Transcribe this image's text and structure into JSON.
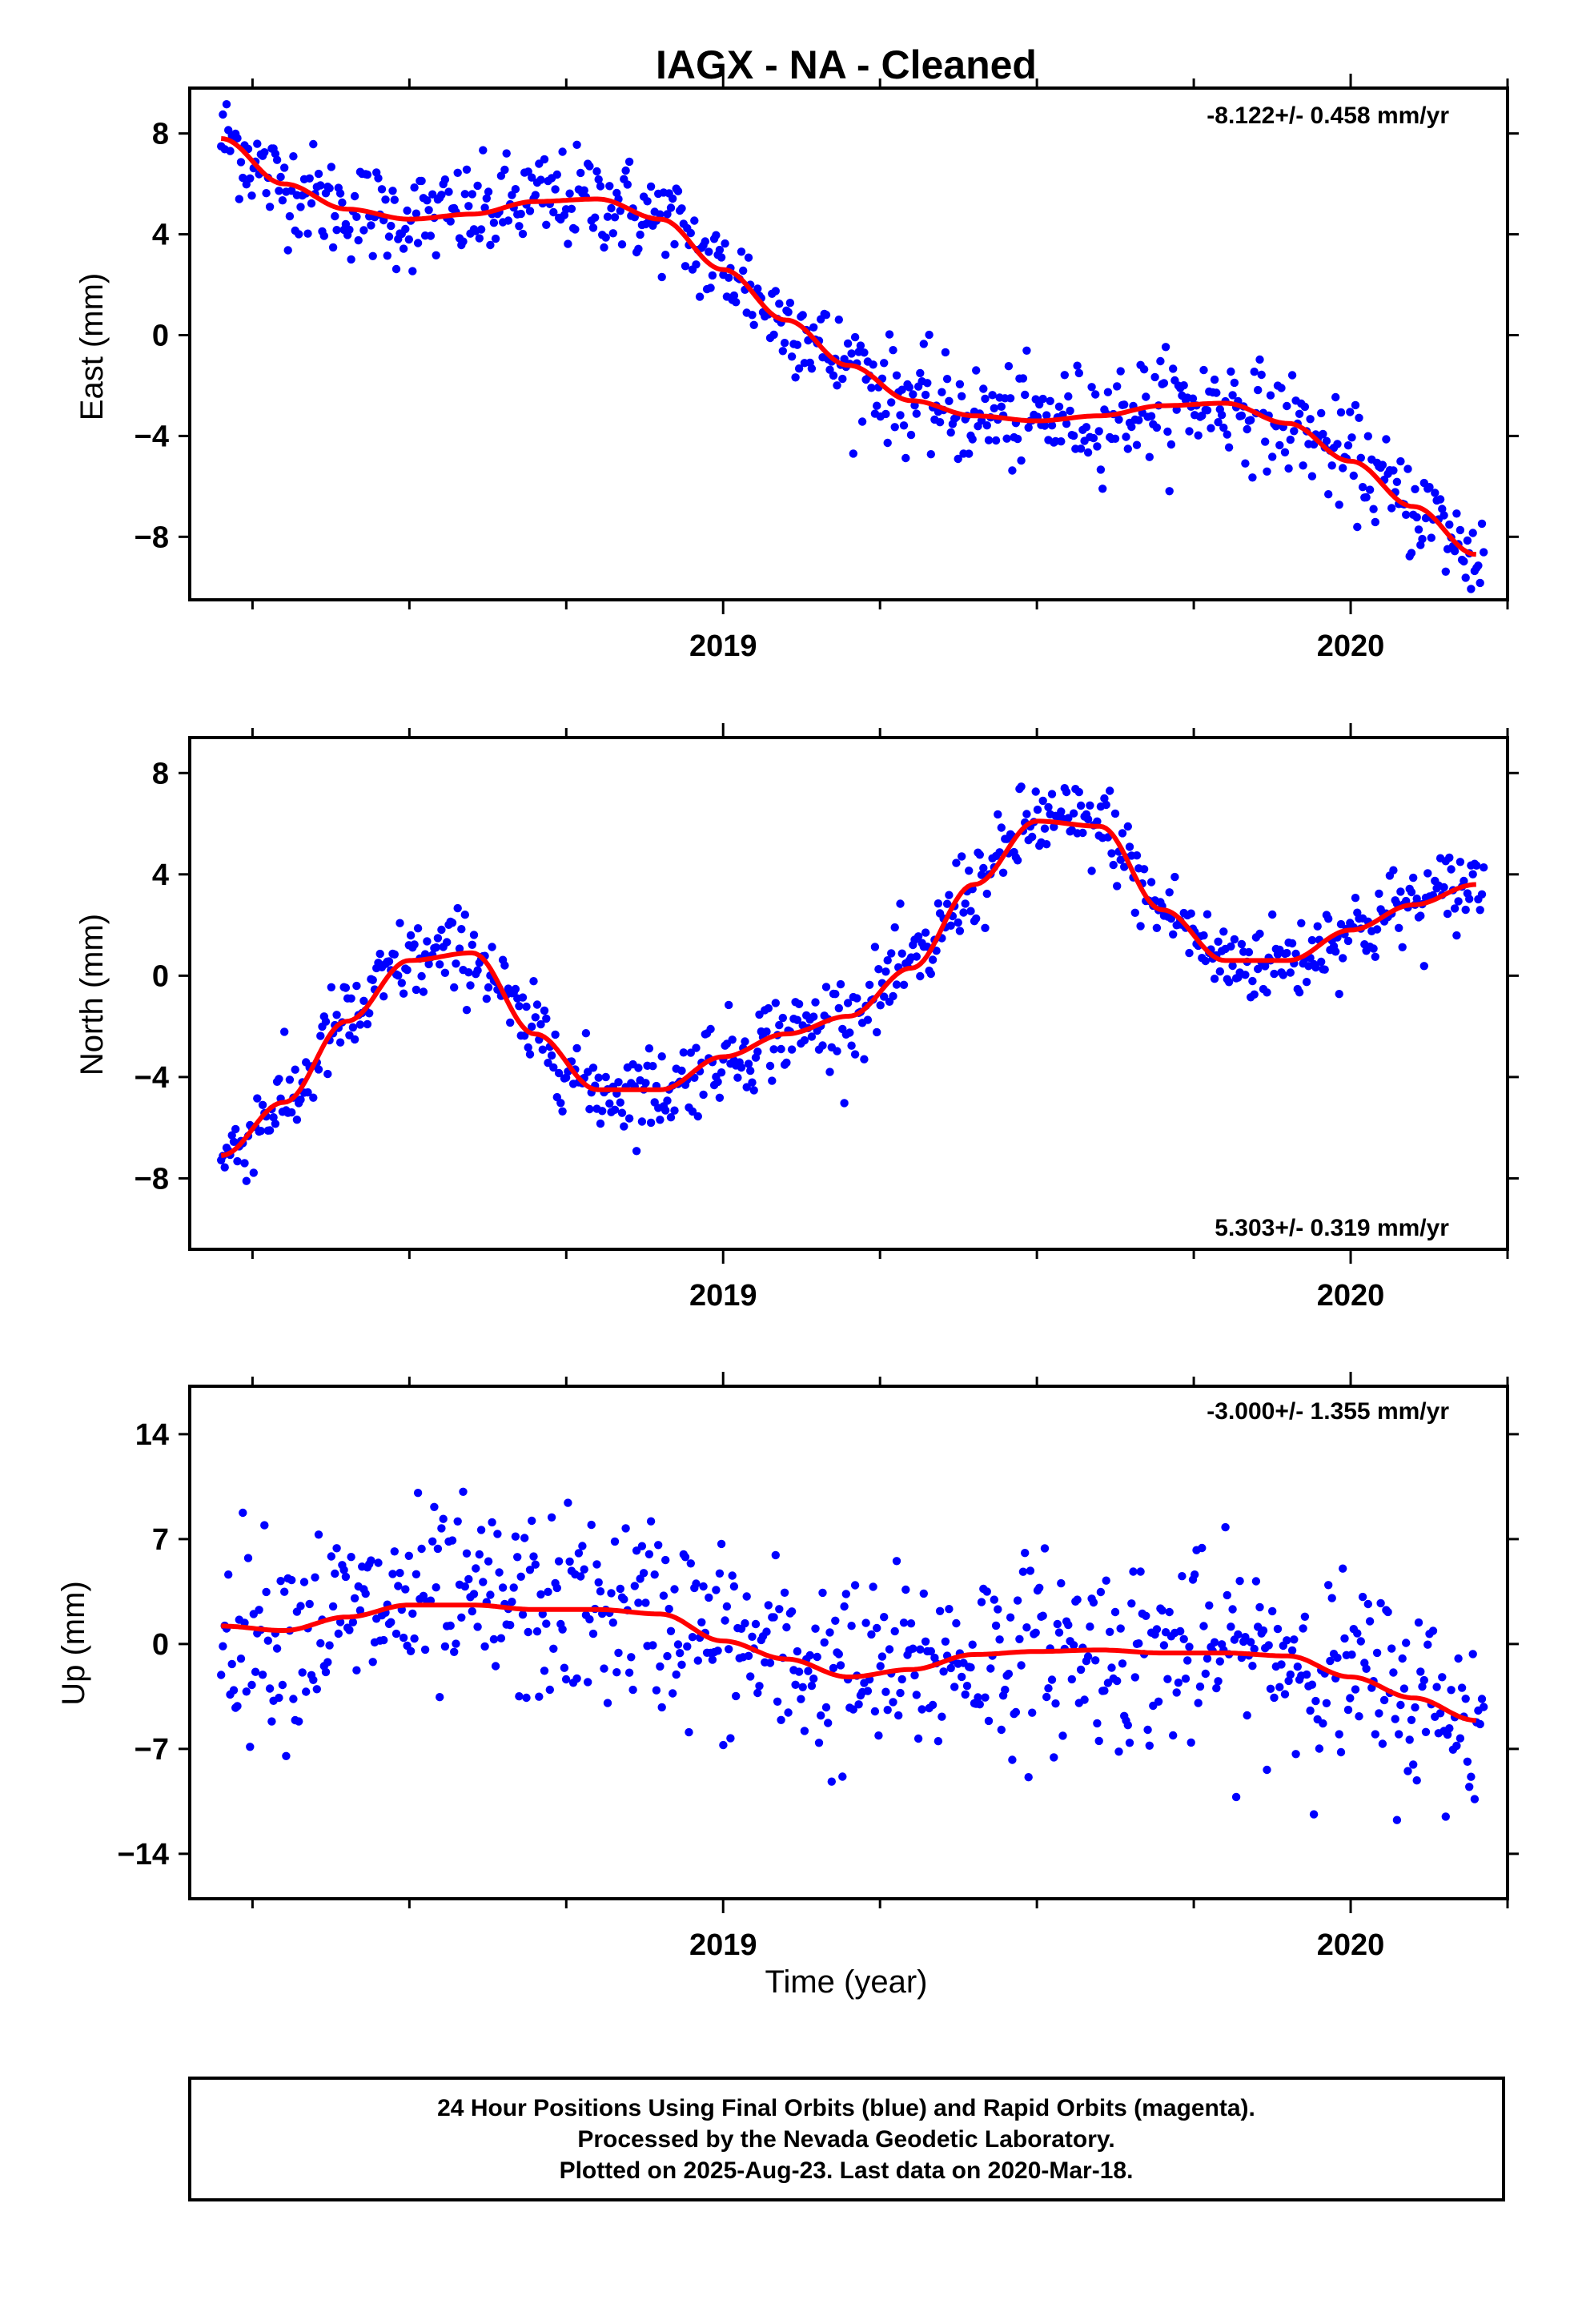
{
  "title": "IAGX  - NA - Cleaned",
  "xlabel": "Time (year)",
  "footer": {
    "lines": [
      "24 Hour Positions Using Final Orbits (blue) and Rapid Orbits (magenta).",
      "Processed by the Nevada Geodetic Laboratory.",
      "Plotted on 2025-Aug-23. Last data on 2020-Mar-18."
    ]
  },
  "colors": {
    "points": "#0000ff",
    "fit": "#ff0000",
    "axes": "#000000"
  },
  "chart_data": [
    {
      "type": "scatter",
      "name": "east",
      "ylabel": "East (mm)",
      "rate_label": "-8.122+/- 0.458 mm/yr",
      "rate_position": "top-right",
      "xlim": [
        2018.15,
        2020.25
      ],
      "ylim": [
        -10.5,
        9.8
      ],
      "yticks": [
        -8,
        -4,
        0,
        4,
        8
      ],
      "ytick_labels": [
        "−8",
        "−4",
        "0",
        "4",
        "8"
      ],
      "xticks": [
        2019,
        2020
      ],
      "xtick_labels": [
        "2019",
        "2020"
      ],
      "fit_curve": {
        "x": [
          2018.2,
          2018.3,
          2018.4,
          2018.5,
          2018.6,
          2018.7,
          2018.8,
          2018.9,
          2019.0,
          2019.1,
          2019.2,
          2019.3,
          2019.4,
          2019.5,
          2019.6,
          2019.7,
          2019.8,
          2019.9,
          2020.0,
          2020.1,
          2020.2
        ],
        "y": [
          7.8,
          6.0,
          5.0,
          4.6,
          4.8,
          5.3,
          5.4,
          4.6,
          2.6,
          0.6,
          -1.2,
          -2.6,
          -3.2,
          -3.4,
          -3.2,
          -2.8,
          -2.7,
          -3.5,
          -5.0,
          -6.8,
          -8.7
        ]
      },
      "points_note": "blue daily positions scattered about the red fit curve"
    },
    {
      "type": "scatter",
      "name": "north",
      "ylabel": "North (mm)",
      "rate_label": "5.303+/- 0.319 mm/yr",
      "rate_position": "bottom-right",
      "xlim": [
        2018.15,
        2020.25
      ],
      "ylim": [
        -10.8,
        9.4
      ],
      "yticks": [
        -8,
        -4,
        0,
        4,
        8
      ],
      "ytick_labels": [
        "−8",
        "−4",
        "0",
        "4",
        "8"
      ],
      "xticks": [
        2019,
        2020
      ],
      "xtick_labels": [
        "2019",
        "2020"
      ],
      "fit_curve": {
        "x": [
          2018.2,
          2018.3,
          2018.4,
          2018.5,
          2018.6,
          2018.7,
          2018.8,
          2018.9,
          2019.0,
          2019.1,
          2019.2,
          2019.3,
          2019.4,
          2019.5,
          2019.6,
          2019.7,
          2019.8,
          2019.9,
          2020.0,
          2020.1,
          2020.2
        ],
        "y": [
          -7.1,
          -5.0,
          -1.8,
          0.6,
          0.9,
          -2.3,
          -4.5,
          -4.5,
          -3.2,
          -2.3,
          -1.6,
          0.3,
          3.6,
          6.1,
          5.9,
          2.6,
          0.6,
          0.6,
          1.8,
          2.8,
          3.6
        ]
      },
      "points_note": "blue daily positions scattered about the red fit curve"
    },
    {
      "type": "scatter",
      "name": "up",
      "ylabel": "Up (mm)",
      "rate_label": "-3.000+/- 1.355 mm/yr",
      "rate_position": "top-right",
      "xlim": [
        2018.15,
        2020.25
      ],
      "ylim": [
        -17,
        17.2
      ],
      "yticks": [
        -14,
        -7,
        0,
        7,
        14
      ],
      "ytick_labels": [
        "−14",
        "−7",
        "0",
        "7",
        "14"
      ],
      "xticks": [
        2019,
        2020
      ],
      "xtick_labels": [
        "2019",
        "2020"
      ],
      "fit_curve": {
        "x": [
          2018.2,
          2018.3,
          2018.4,
          2018.5,
          2018.6,
          2018.7,
          2018.8,
          2018.9,
          2019.0,
          2019.1,
          2019.2,
          2019.3,
          2019.4,
          2019.5,
          2019.6,
          2019.7,
          2019.8,
          2019.9,
          2020.0,
          2020.1,
          2020.2
        ],
        "y": [
          1.2,
          0.9,
          1.8,
          2.6,
          2.6,
          2.3,
          2.3,
          2.0,
          0.2,
          -1.0,
          -2.2,
          -1.7,
          -0.7,
          -0.5,
          -0.4,
          -0.6,
          -0.6,
          -0.8,
          -2.2,
          -3.6,
          -5.1
        ]
      },
      "points_note": "blue daily positions scattered about the red fit curve"
    }
  ]
}
